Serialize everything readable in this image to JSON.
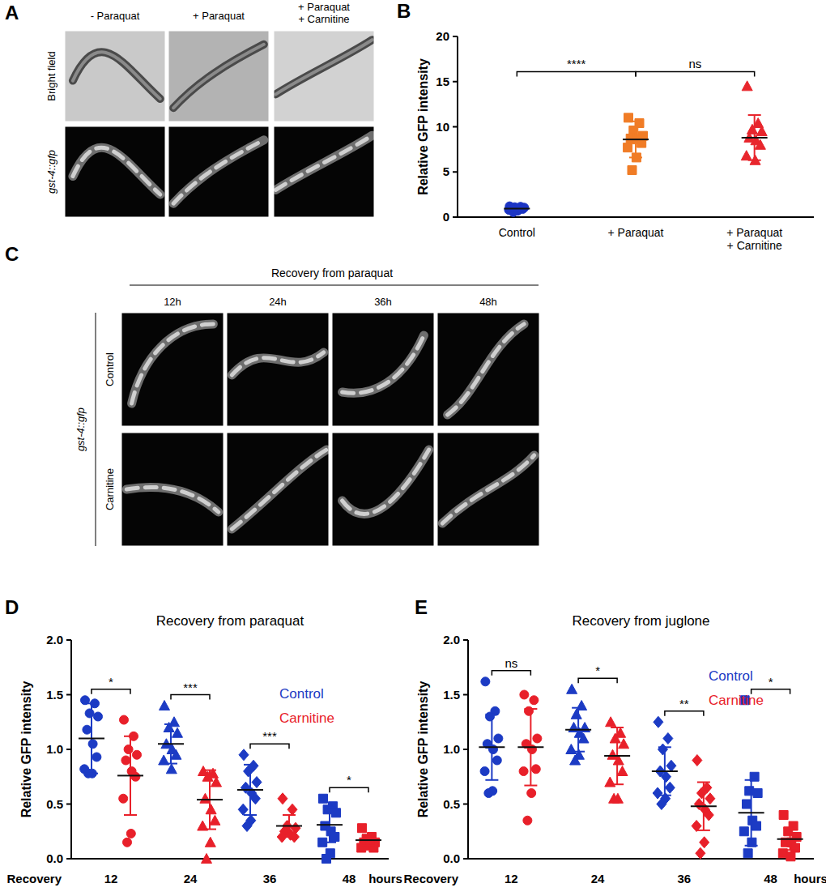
{
  "figure": {
    "panels": [
      {
        "label": "A",
        "columns": [
          "- Paraquat",
          "+ Paraquat",
          "+ Paraquat\n+ Carnitine"
        ],
        "rows": [
          "Bright field",
          "gst-4::gfp"
        ]
      },
      {
        "label": "C",
        "title": "Recovery from paraquat",
        "columns": [
          "12h",
          "24h",
          "36h",
          "48h"
        ],
        "rows": [
          "Control",
          "Carnitine"
        ],
        "group_label": "gst-4::gfp"
      }
    ]
  },
  "chart_data": [
    {
      "panel": "B",
      "type": "scatter",
      "y_label": "Relative GFP intensity",
      "categories": [
        "Control",
        "+ Paraquat",
        "+ Paraquat\n+ Carnitine"
      ],
      "series": [
        {
          "colors": [
            "#1c35c4",
            "#f07c26",
            "#e8262d"
          ],
          "values": [
            [
              1.2,
              1.15,
              1.1,
              1.05,
              1.0,
              0.95,
              0.9,
              0.8,
              0.7,
              0.55
            ],
            [
              11.0,
              10.4,
              9.6,
              9.0,
              8.7,
              8.6,
              8.2,
              7.7,
              6.6,
              5.2
            ],
            [
              14.5,
              10.4,
              9.7,
              9.5,
              8.8,
              8.5,
              8.0,
              6.8,
              6.3
            ]
          ],
          "mean": [
            0.95,
            8.6,
            8.8
          ],
          "sd": [
            0.2,
            2.0,
            2.5
          ]
        }
      ],
      "ylim": [
        0,
        20
      ],
      "yticks": [
        0,
        5,
        10,
        15,
        20
      ],
      "annotations": [
        {
          "text": "****",
          "categories": [
            0,
            1
          ]
        },
        {
          "text": "ns",
          "categories": [
            1,
            2
          ]
        }
      ]
    },
    {
      "panel": "D",
      "type": "scatter",
      "title": "Recovery from paraquat",
      "y_label": "Relative GFP intensity",
      "x_label": "Recovery",
      "x_unit": "hours",
      "categories": [
        "12",
        "24",
        "36",
        "48"
      ],
      "series": [
        {
          "name": "Control",
          "color": "#1c3bc4",
          "values": [
            [
              1.45,
              1.42,
              1.33,
              1.3,
              1.18,
              1.05,
              0.93,
              0.82,
              0.78,
              0.78
            ],
            [
              1.4,
              1.25,
              1.2,
              1.15,
              1.05,
              1.0,
              0.95,
              0.9,
              0.82
            ],
            [
              0.95,
              0.85,
              0.8,
              0.7,
              0.65,
              0.6,
              0.55,
              0.45,
              0.35,
              0.3
            ],
            [
              0.55,
              0.48,
              0.45,
              0.42,
              0.3,
              0.25,
              0.2,
              0.15,
              0.05,
              0.0
            ]
          ],
          "mean": [
            1.1,
            1.05,
            0.63,
            0.31
          ],
          "sd": [
            0.32,
            0.18,
            0.23,
            0.16
          ]
        },
        {
          "name": "Carnitine",
          "color": "#e8202a",
          "values": [
            [
              1.27,
              1.12,
              1.0,
              0.95,
              0.9,
              0.8,
              0.75,
              0.55,
              0.23,
              0.15
            ],
            [
              0.8,
              0.78,
              0.75,
              0.7,
              0.55,
              0.45,
              0.35,
              0.3,
              0.15,
              0.0
            ],
            [
              0.55,
              0.45,
              0.3,
              0.28,
              0.25,
              0.22,
              0.2,
              0.2
            ],
            [
              0.28,
              0.2,
              0.18,
              0.15,
              0.15,
              0.12,
              0.1,
              0.1
            ]
          ],
          "mean": [
            0.76,
            0.54,
            0.3,
            0.17
          ],
          "sd": [
            0.36,
            0.27,
            0.1,
            0.05
          ]
        }
      ],
      "ylim": [
        0,
        2
      ],
      "yticks": [
        {
          "value": 0,
          "label": "0.0"
        },
        {
          "value": 0.5,
          "label": "0.5"
        },
        {
          "value": 1,
          "label": "1.0"
        },
        {
          "value": 1.5,
          "label": "1.5"
        },
        {
          "value": 2,
          "label": "2.0"
        }
      ],
      "annotations": [
        {
          "text": "*",
          "category": 0
        },
        {
          "text": "***",
          "category": 1
        },
        {
          "text": "***",
          "category": 2
        },
        {
          "text": "*",
          "category": 3
        }
      ]
    },
    {
      "panel": "E",
      "type": "scatter",
      "title": "Recovery from juglone",
      "y_label": "Relative GFP intensity",
      "x_label": "Recovery",
      "x_unit": "hours",
      "categories": [
        "12",
        "24",
        "36",
        "48"
      ],
      "series": [
        {
          "name": "Control",
          "color": "#1c3bc4",
          "values": [
            [
              1.62,
              1.35,
              1.3,
              1.1,
              1.05,
              1.0,
              0.9,
              0.8,
              0.62,
              0.6
            ],
            [
              1.55,
              1.4,
              1.32,
              1.2,
              1.2,
              1.15,
              1.1,
              1.0,
              0.95,
              0.9
            ],
            [
              1.25,
              1.1,
              1.0,
              0.85,
              0.8,
              0.75,
              0.65,
              0.6,
              0.55,
              0.5
            ],
            [
              1.45,
              0.75,
              0.62,
              0.6,
              0.5,
              0.35,
              0.3,
              0.25,
              0.15,
              0.05
            ]
          ],
          "mean": [
            1.02,
            1.18,
            0.8,
            0.42
          ],
          "sd": [
            0.3,
            0.2,
            0.22,
            0.3
          ]
        },
        {
          "name": "Carnitine",
          "color": "#e8202a",
          "values": [
            [
              1.5,
              1.45,
              1.35,
              1.1,
              1.05,
              1.0,
              0.82,
              0.8,
              0.6,
              0.35
            ],
            [
              1.25,
              1.15,
              1.1,
              1.05,
              0.95,
              0.9,
              0.8,
              0.7,
              0.55,
              0.55
            ],
            [
              0.9,
              0.65,
              0.6,
              0.55,
              0.5,
              0.45,
              0.4,
              0.3,
              0.15,
              0.05
            ],
            [
              0.4,
              0.3,
              0.25,
              0.2,
              0.15,
              0.15,
              0.1,
              0.05,
              0.02
            ]
          ],
          "mean": [
            1.02,
            0.94,
            0.48,
            0.18
          ],
          "sd": [
            0.35,
            0.26,
            0.22,
            0.1
          ]
        }
      ],
      "ylim": [
        0,
        2
      ],
      "yticks": [
        {
          "value": 0,
          "label": "0.0"
        },
        {
          "value": 0.5,
          "label": "0.5"
        },
        {
          "value": 1,
          "label": "1.0"
        },
        {
          "value": 1.5,
          "label": "1.5"
        },
        {
          "value": 2,
          "label": "2.0"
        }
      ],
      "annotations": [
        {
          "text": "ns",
          "category": 0
        },
        {
          "text": "*",
          "category": 1
        },
        {
          "text": "**",
          "category": 2
        },
        {
          "text": "*",
          "category": 3
        }
      ]
    }
  ]
}
